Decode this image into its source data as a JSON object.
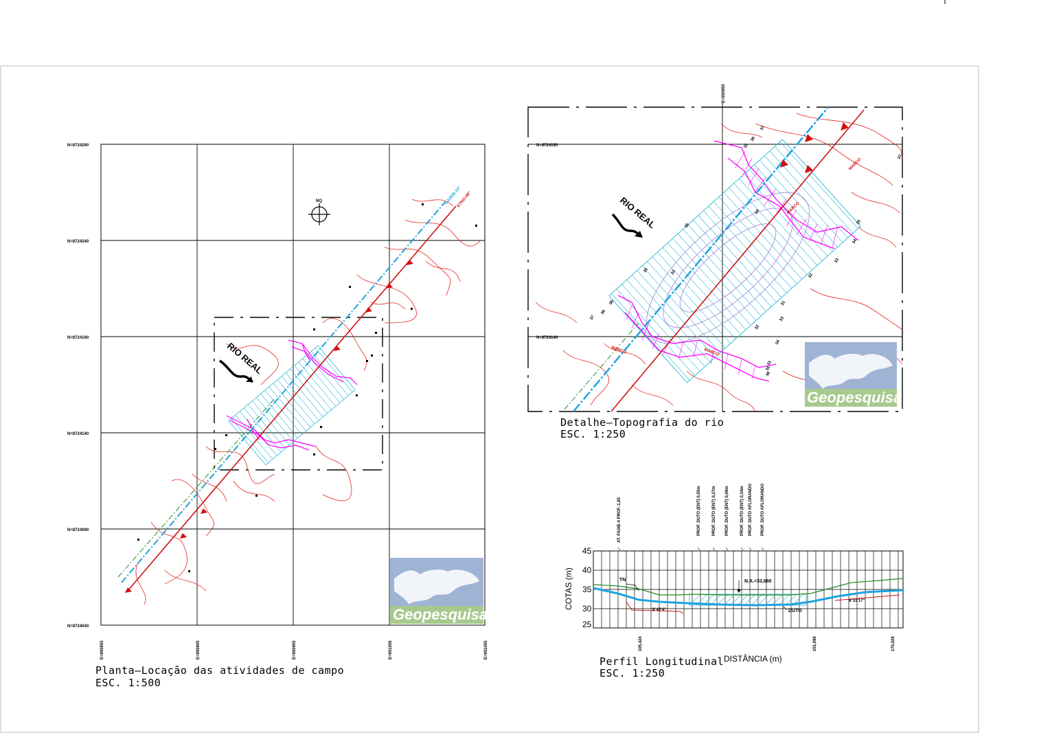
{
  "plan": {
    "title": "Planta—Locação das atividades de campo",
    "scale": "ESC. 1:500",
    "north_labels": [
      "N=8724290",
      "N=8724240",
      "N=8724190",
      "N=8724140",
      "N=8724090",
      "N=8724040"
    ],
    "east_labels": [
      "E=650855",
      "E=650905",
      "E=650955",
      "E=651005",
      "E=651055"
    ],
    "river_label": "RIO REAL",
    "north_arrow": "NQ",
    "pipe_labels": [
      "GASEB-14\"",
      "ETNO-08\""
    ]
  },
  "detail": {
    "title": "Detalhe—Topografia do rio",
    "scale": "ESC. 1:250",
    "north_labels": [
      "N=8724190",
      "N=8724140"
    ],
    "east_label": "E=650955",
    "river_label": "RIO REAL",
    "marco_labels": [
      "MARCO",
      "MARCO",
      "MARCO",
      "MARCO"
    ],
    "contour_labels": [
      "37",
      "36",
      "35",
      "34",
      "33",
      "32",
      "31",
      "35",
      "34",
      "33",
      "35",
      "36",
      "37",
      "36",
      "35",
      "34",
      "33",
      "32",
      "31",
      "35",
      "36",
      "37"
    ]
  },
  "profile": {
    "title": "Perfil Longitudinal",
    "scale": "ESC. 1:250",
    "y_axis_label": "COTAS (m)",
    "x_axis_label": "DISTÂNCIA (m)",
    "y_ticks": [
      "45",
      "40",
      "35",
      "30",
      "25"
    ],
    "x_ticks": [
      "105,424",
      "151,099",
      "170,026"
    ],
    "annotations": {
      "tn": "TN",
      "na": "N.A.=33,680",
      "duto": "DUTO",
      "angle_left": "8°42'4\"",
      "angle_right": "9°31'17\""
    },
    "vertical_notes": [
      "AT. FAIXE-4 PROF.-1,85",
      "PROF. DUTO (ENT) 0,55m",
      "PROF. DUTO (ENT) 0,27m",
      "PROF. DUTO (ENT) 0,06m",
      "PROF. DUTO (ENT) 0,34m",
      "PROF. DUTO AFLORANDO",
      "PROF. DUTO AFLORANDO"
    ]
  },
  "logo": {
    "brand": "Geopesquisa",
    "bg_color": "#9fb3d4",
    "band_color": "#a7c98e"
  },
  "colors": {
    "grid": "#000000",
    "contour": "#e2261e",
    "cyan_hatch": "#2bb5d6",
    "magenta": "#ff00ff",
    "pipe_red": "#d01010",
    "pipe_blue": "#1ea2e0",
    "green": "#1f8a1f"
  }
}
